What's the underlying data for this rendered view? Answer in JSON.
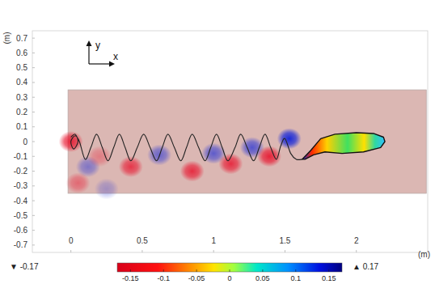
{
  "chart_data": {
    "type": "field",
    "xlabel": "(m)",
    "ylabel": "(m)",
    "axes_indicator": {
      "x": "x",
      "y": "y"
    },
    "xlim": [
      -0.27,
      2.5
    ],
    "ylim": [
      -0.75,
      0.75
    ],
    "xticks": [
      0,
      0.5,
      1,
      1.5,
      2
    ],
    "yticks": [
      0.7,
      0.6,
      0.5,
      0.4,
      0.3,
      0.2,
      0.1,
      0,
      -0.1,
      -0.2,
      -0.3,
      -0.4,
      -0.5,
      -0.6,
      -0.7
    ],
    "domain": {
      "x": [
        -0.02,
        2.49
      ],
      "y": [
        -0.35,
        0.35
      ]
    },
    "trajectory": {
      "x": [
        0.0,
        0.03,
        0.05,
        0.02,
        0.0,
        0.03,
        0.06,
        0.1,
        0.14,
        0.18,
        0.22,
        0.26,
        0.3,
        0.34,
        0.38,
        0.42,
        0.465,
        0.51,
        0.555,
        0.6,
        0.64,
        0.68,
        0.725,
        0.77,
        0.81,
        0.85,
        0.895,
        0.94,
        0.98,
        1.02,
        1.06,
        1.1,
        1.15,
        1.19,
        1.235,
        1.28,
        1.32,
        1.36,
        1.4,
        1.44,
        1.47,
        1.5,
        1.54,
        1.58,
        1.62
      ],
      "y": [
        0.03,
        0.05,
        0.0,
        -0.05,
        0.0,
        0.04,
        0.0,
        -0.12,
        -0.04,
        0.05,
        -0.04,
        -0.13,
        -0.04,
        0.05,
        -0.04,
        -0.13,
        -0.04,
        0.05,
        -0.04,
        -0.13,
        -0.04,
        0.05,
        -0.04,
        -0.13,
        -0.04,
        0.05,
        -0.04,
        -0.13,
        -0.04,
        0.05,
        -0.04,
        -0.13,
        -0.04,
        0.05,
        -0.04,
        -0.13,
        -0.04,
        0.05,
        -0.04,
        -0.12,
        -0.03,
        0.02,
        -0.08,
        -0.12,
        -0.12
      ]
    },
    "body": {
      "x": [
        1.62,
        1.68,
        1.75,
        1.85,
        2.0,
        2.12,
        2.19,
        2.2,
        2.17,
        2.05,
        1.9,
        1.78,
        1.7,
        1.64
      ],
      "y": [
        -0.12,
        -0.06,
        0.02,
        0.05,
        0.06,
        0.055,
        0.03,
        0.0,
        -0.04,
        -0.07,
        -0.08,
        -0.07,
        -0.09,
        -0.12
      ]
    },
    "vortices": [
      {
        "x": 0.0,
        "y": 0.0,
        "value": -0.15
      },
      {
        "x": 0.12,
        "y": -0.17,
        "value": 0.08
      },
      {
        "x": 0.05,
        "y": -0.28,
        "value": -0.08
      },
      {
        "x": 0.25,
        "y": -0.32,
        "value": 0.05
      },
      {
        "x": 0.2,
        "y": -0.1,
        "value": -0.06
      },
      {
        "x": 0.42,
        "y": -0.17,
        "value": -0.13
      },
      {
        "x": 0.62,
        "y": -0.09,
        "value": 0.1
      },
      {
        "x": 0.85,
        "y": -0.2,
        "value": -0.14
      },
      {
        "x": 1.0,
        "y": -0.08,
        "value": 0.11
      },
      {
        "x": 1.12,
        "y": -0.15,
        "value": -0.14
      },
      {
        "x": 1.27,
        "y": -0.04,
        "value": 0.12
      },
      {
        "x": 1.39,
        "y": -0.1,
        "value": -0.15
      },
      {
        "x": 1.53,
        "y": 0.02,
        "value": 0.17
      }
    ],
    "colorbar": {
      "range": [
        -0.17,
        0.17
      ],
      "ticks": [
        -0.15,
        -0.1,
        -0.05,
        0,
        0.05,
        0.1,
        0.15
      ],
      "min_label": {
        "value": -0.17,
        "label": "▼ -0.17"
      },
      "max_label": {
        "value": 0.17,
        "label": "▲ 0.17"
      }
    }
  }
}
